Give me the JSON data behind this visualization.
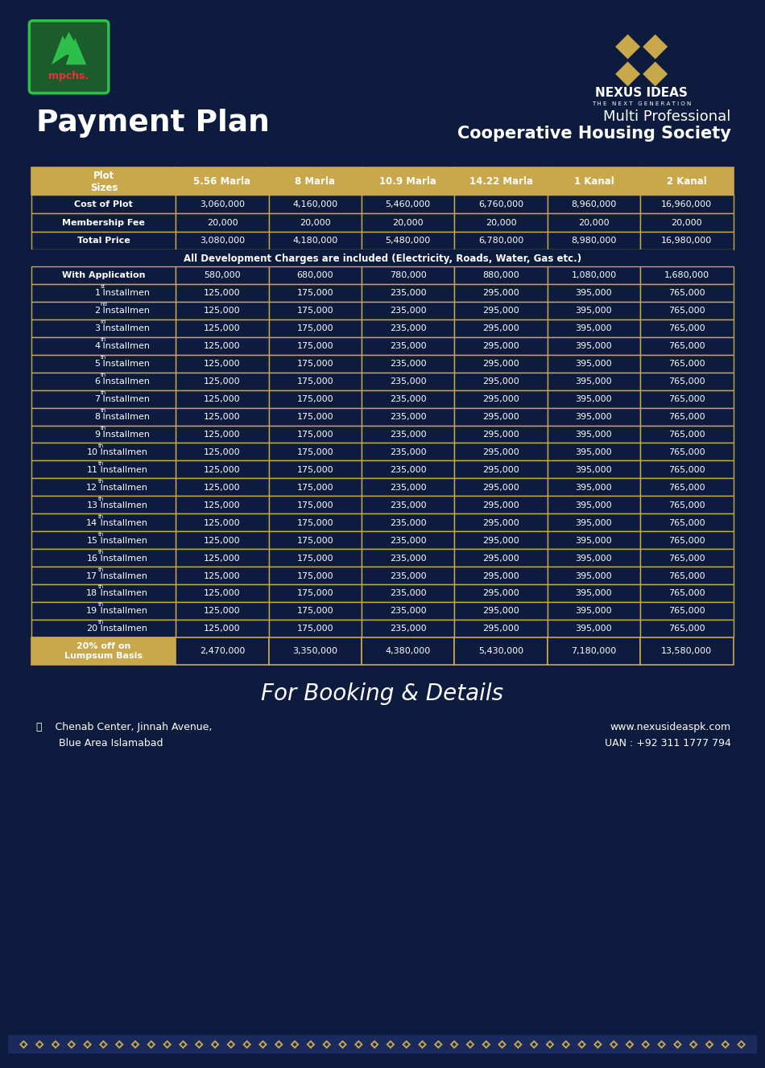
{
  "bg_color": "#0d1b3e",
  "title_left": "Payment Plan",
  "title_right_line1": "Multi Professional",
  "title_right_line2": "Cooperative Housing Society",
  "header_bg": "#c9a84c",
  "header_text_color": "#ffffff",
  "border_color": "#c9a84c",
  "columns": [
    "Plot\nSizes",
    "5.56 Marla",
    "8 Marla",
    "10.9 Marla",
    "14.22 Marla",
    "1 Kanal",
    "2 Kanal"
  ],
  "summary_rows": [
    [
      "Cost of Plot",
      "3,060,000",
      "4,160,000",
      "5,460,000",
      "6,760,000",
      "8,960,000",
      "16,960,000"
    ],
    [
      "Membership Fee",
      "20,000",
      "20,000",
      "20,000",
      "20,000",
      "20,000",
      "20,000"
    ],
    [
      "Total Price",
      "3,080,000",
      "4,180,000",
      "5,480,000",
      "6,780,000",
      "8,980,000",
      "16,980,000"
    ]
  ],
  "dev_charge_note": "All Development Charges are included (Electricity, Roads, Water, Gas etc.)",
  "installment_rows": [
    [
      "With Application",
      "580,000",
      "680,000",
      "780,000",
      "880,000",
      "1,080,000",
      "1,680,000"
    ],
    [
      "1",
      "st",
      "125,000",
      "175,000",
      "235,000",
      "295,000",
      "395,000",
      "765,000"
    ],
    [
      "2",
      "nd",
      "125,000",
      "175,000",
      "235,000",
      "295,000",
      "395,000",
      "765,000"
    ],
    [
      "3",
      "rd",
      "125,000",
      "175,000",
      "235,000",
      "295,000",
      "395,000",
      "765,000"
    ],
    [
      "4",
      "th",
      "125,000",
      "175,000",
      "235,000",
      "295,000",
      "395,000",
      "765,000"
    ],
    [
      "5",
      "th",
      "125,000",
      "175,000",
      "235,000",
      "295,000",
      "395,000",
      "765,000"
    ],
    [
      "6",
      "th",
      "125,000",
      "175,000",
      "235,000",
      "295,000",
      "395,000",
      "765,000"
    ],
    [
      "7",
      "th",
      "125,000",
      "175,000",
      "235,000",
      "295,000",
      "395,000",
      "765,000"
    ],
    [
      "8",
      "th",
      "125,000",
      "175,000",
      "235,000",
      "295,000",
      "395,000",
      "765,000"
    ],
    [
      "9",
      "th",
      "125,000",
      "175,000",
      "235,000",
      "295,000",
      "395,000",
      "765,000"
    ],
    [
      "10",
      "th",
      "125,000",
      "175,000",
      "235,000",
      "295,000",
      "395,000",
      "765,000"
    ],
    [
      "11",
      "th",
      "125,000",
      "175,000",
      "235,000",
      "295,000",
      "395,000",
      "765,000"
    ],
    [
      "12",
      "th",
      "125,000",
      "175,000",
      "235,000",
      "295,000",
      "395,000",
      "765,000"
    ],
    [
      "13",
      "th",
      "125,000",
      "175,000",
      "235,000",
      "295,000",
      "395,000",
      "765,000"
    ],
    [
      "14",
      "th",
      "125,000",
      "175,000",
      "235,000",
      "295,000",
      "395,000",
      "765,000"
    ],
    [
      "15",
      "th",
      "125,000",
      "175,000",
      "235,000",
      "295,000",
      "395,000",
      "765,000"
    ],
    [
      "16",
      "th",
      "125,000",
      "175,000",
      "235,000",
      "295,000",
      "395,000",
      "765,000"
    ],
    [
      "17",
      "th",
      "125,000",
      "175,000",
      "235,000",
      "295,000",
      "395,000",
      "765,000"
    ],
    [
      "18",
      "th",
      "125,000",
      "175,000",
      "235,000",
      "295,000",
      "395,000",
      "765,000"
    ],
    [
      "19",
      "th",
      "125,000",
      "175,000",
      "235,000",
      "295,000",
      "395,000",
      "765,000"
    ],
    [
      "20",
      "th",
      "125,000",
      "175,000",
      "235,000",
      "295,000",
      "395,000",
      "765,000"
    ]
  ],
  "lumpsum_row": [
    "20% off on\nLumpsum Basis",
    "2,470,000",
    "3,350,000",
    "4,380,000",
    "5,430,000",
    "7,180,000",
    "13,580,000"
  ],
  "footer_booking": "For Booking & Details",
  "footer_left_line1": "  Chenab Center, Jinnah Avenue,",
  "footer_left_line2": "  Blue Area Islamabad",
  "footer_right_line1": "www.nexusideaspk.com",
  "footer_right_line2": "UAN : +92 311 1777 794",
  "gold": "#c9a84c",
  "white": "#ffffff",
  "dark_navy": "#0d1b3e",
  "medium_navy": "#152347"
}
